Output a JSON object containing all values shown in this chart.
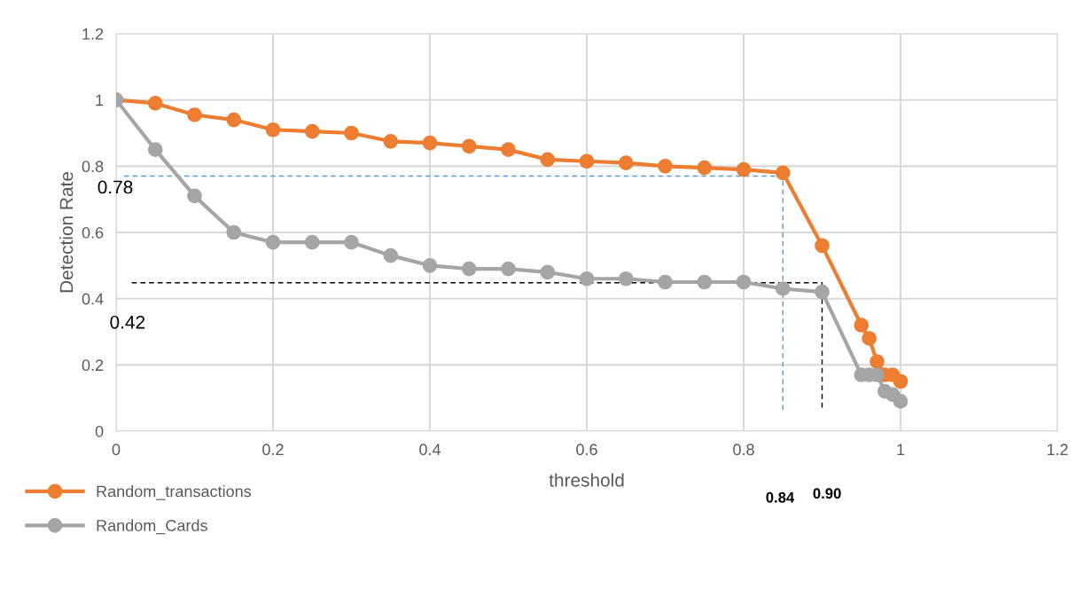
{
  "chart_data": {
    "type": "line",
    "xlabel": "threshold",
    "ylabel": "Detection Rate",
    "x": [
      0,
      0.05,
      0.1,
      0.15,
      0.2,
      0.25,
      0.3,
      0.35,
      0.4,
      0.45,
      0.5,
      0.55,
      0.6,
      0.65,
      0.7,
      0.75,
      0.8,
      0.85,
      0.9,
      0.95,
      0.96,
      0.97,
      0.98,
      0.99,
      1
    ],
    "series": [
      {
        "name": "Random_transactions",
        "color": "#ed7d31",
        "marker": "circle",
        "values": [
          1,
          0.99,
          0.955,
          0.94,
          0.91,
          0.905,
          0.9,
          0.875,
          0.87,
          0.86,
          0.85,
          0.82,
          0.815,
          0.81,
          0.8,
          0.795,
          0.79,
          0.78,
          0.56,
          0.32,
          0.28,
          0.21,
          0.17,
          0.17,
          0.15
        ]
      },
      {
        "name": "Random_Cards",
        "color": "#a5a5a5",
        "marker": "circle",
        "values": [
          1,
          0.85,
          0.71,
          0.6,
          0.57,
          0.57,
          0.57,
          0.53,
          0.5,
          0.49,
          0.49,
          0.48,
          0.46,
          0.46,
          0.45,
          0.45,
          0.45,
          0.43,
          0.42,
          0.17,
          0.17,
          0.17,
          0.12,
          0.11,
          0.09
        ]
      },
      {
        "color": "#5b9bd5",
        "marker": "none",
        "line_style": "dashed",
        "x": [
          0.01,
          0.85,
          0.85
        ],
        "values": [
          0.77,
          0.77,
          0.06
        ]
      },
      {
        "color": "#000000",
        "marker": "none",
        "line_style": "dashed",
        "x": [
          0.02,
          0.9,
          0.9
        ],
        "values": [
          0.448,
          0.448,
          0.07
        ]
      }
    ],
    "annotations": [
      "0.78",
      "0.42",
      "0.84",
      "0.90"
    ],
    "xlim": [
      0,
      1.2
    ],
    "xticks": [
      0,
      0.2,
      0.4,
      0.6,
      0.8,
      1,
      1.2
    ],
    "ylim": [
      0,
      1.2
    ],
    "yticks": [
      0,
      0.2,
      0.4,
      0.6,
      0.8,
      1,
      1.2
    ],
    "grid": true,
    "legend": "bottom left"
  }
}
